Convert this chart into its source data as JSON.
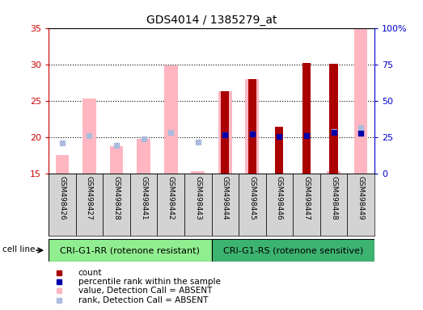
{
  "title": "GDS4014 / 1385279_at",
  "samples": [
    "GSM498426",
    "GSM498427",
    "GSM498428",
    "GSM498441",
    "GSM498442",
    "GSM498443",
    "GSM498444",
    "GSM498445",
    "GSM498446",
    "GSM498447",
    "GSM498448",
    "GSM498449"
  ],
  "group_names": [
    "CRI-G1-RR (rotenone resistant)",
    "CRI-G1-RS (rotenone sensitive)"
  ],
  "group_indices": [
    [
      0,
      1,
      2,
      3,
      4,
      5
    ],
    [
      6,
      7,
      8,
      9,
      10,
      11
    ]
  ],
  "group_bg_colors": [
    "#90EE90",
    "#3CB371"
  ],
  "ylim_left": [
    15,
    35
  ],
  "ylim_right": [
    0,
    100
  ],
  "yticks_left": [
    15,
    20,
    25,
    30,
    35
  ],
  "yticks_right": [
    0,
    25,
    50,
    75,
    100
  ],
  "yticklabels_right": [
    "0",
    "25",
    "50",
    "75",
    "100%"
  ],
  "value_absent": [
    17.5,
    25.3,
    18.8,
    19.8,
    29.8,
    15.3,
    26.3,
    28.0,
    null,
    null,
    15.3,
    35.0
  ],
  "rank_absent": [
    19.2,
    20.2,
    18.9,
    19.8,
    20.7,
    19.3,
    20.3,
    20.4,
    null,
    null,
    20.8,
    21.3
  ],
  "count_present": [
    null,
    null,
    null,
    null,
    null,
    null,
    26.3,
    28.0,
    21.4,
    30.2,
    30.1,
    null
  ],
  "rank_present": [
    null,
    null,
    null,
    null,
    null,
    null,
    20.3,
    20.4,
    20.1,
    20.2,
    20.7,
    20.5
  ],
  "bar_bottom": 15,
  "pink_color": "#FFB6C1",
  "lightblue_color": "#AABBDD",
  "red_color": "#AA0000",
  "blue_color": "#0000AA",
  "bg_color": "#ffffff",
  "plot_bg": "#ffffff",
  "left_label_color": "#CC0000",
  "right_label_color": "#0000CC",
  "tick_label_color_left": "#CC0000",
  "tick_label_color_right": "#0000CC",
  "dotted_yticks": [
    20,
    25,
    30
  ],
  "pink_bar_width": 0.5,
  "red_bar_width": 0.3
}
